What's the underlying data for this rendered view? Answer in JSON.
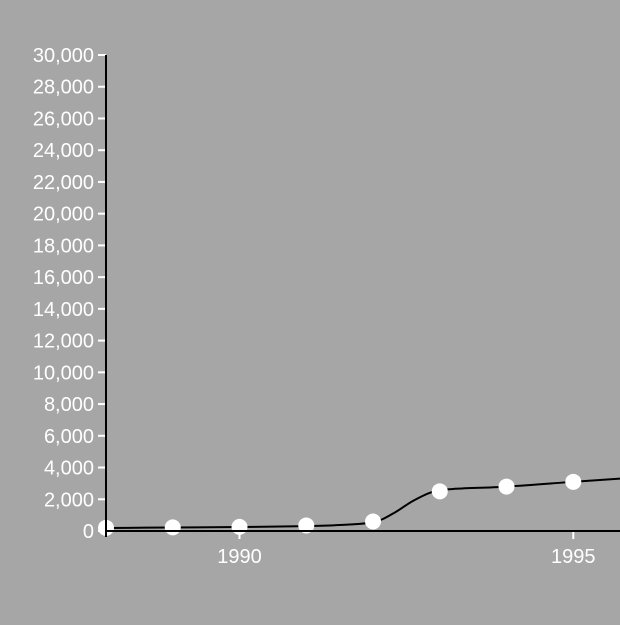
{
  "colors": {
    "background": "#a6a6a6",
    "axis": "#000000",
    "line": "#000000",
    "marker": "#ffffff",
    "text": "#ffffff"
  },
  "chart_data": {
    "type": "line",
    "title": "",
    "xlabel": "",
    "ylabel": "",
    "grid": false,
    "legend": "none",
    "xlim": [
      1988,
      1995.7
    ],
    "ylim": [
      0,
      30000
    ],
    "x_ticks": [
      1990,
      1995
    ],
    "x_tick_labels": [
      "1990",
      "1995"
    ],
    "y_ticks": [
      0,
      2000,
      4000,
      6000,
      8000,
      10000,
      12000,
      14000,
      16000,
      18000,
      20000,
      22000,
      24000,
      26000,
      28000,
      30000
    ],
    "y_tick_labels": [
      "0",
      "2,000",
      "4,000",
      "6,000",
      "8,000",
      "10,000",
      "12,000",
      "14,000",
      "16,000",
      "18,000",
      "20,000",
      "22,000",
      "24,000",
      "26,000",
      "28,000",
      "30,000"
    ],
    "series": [
      {
        "x": [
          1988,
          1989,
          1990,
          1991,
          1992,
          1993,
          1994,
          1995
        ],
        "y": [
          200,
          230,
          260,
          350,
          600,
          2500,
          2800,
          3100
        ],
        "line_x": [
          1988,
          1989,
          1990,
          1991,
          1991.5,
          1992,
          1992.3,
          1992.6,
          1992.9,
          1993.2,
          1994,
          1995,
          1995.7
        ],
        "line_y": [
          190,
          220,
          250,
          310,
          380,
          550,
          1100,
          1900,
          2480,
          2650,
          2800,
          3100,
          3300
        ]
      }
    ]
  }
}
